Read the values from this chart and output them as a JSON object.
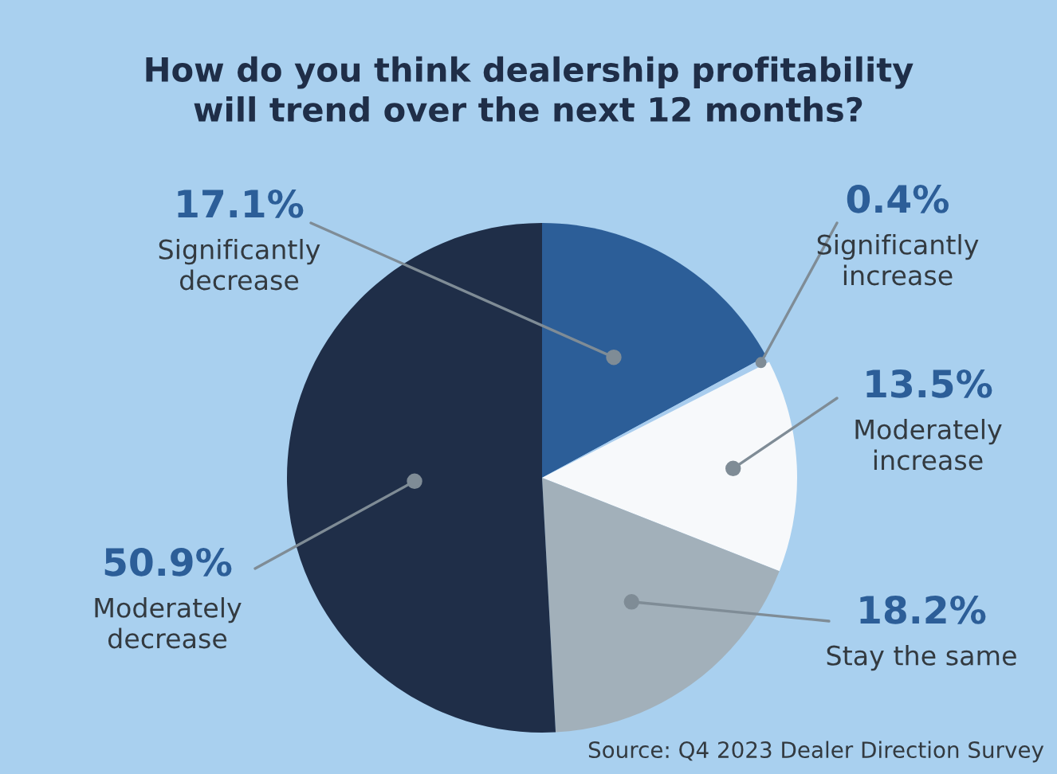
{
  "chart_data": {
    "type": "pie",
    "title": "How do you think dealership profitability\nwill trend over the next 12 months?",
    "categories": [
      "Significantly\ndecrease",
      "Significantly\nincrease",
      "Moderately\nincrease",
      "Stay the same",
      "Moderately\ndecrease"
    ],
    "values": [
      17.1,
      0.4,
      13.5,
      18.2,
      50.9
    ],
    "value_labels": [
      "17.1%",
      "0.4%",
      "13.5%",
      "18.2%",
      "50.9%"
    ],
    "colors": [
      "#2c5e98",
      "#a9cdee",
      "#f7f9fb",
      "#a2b0ba",
      "#1f2e48"
    ],
    "annotations": [
      "Source: Q4 2023 Dealer Direction Survey"
    ]
  }
}
